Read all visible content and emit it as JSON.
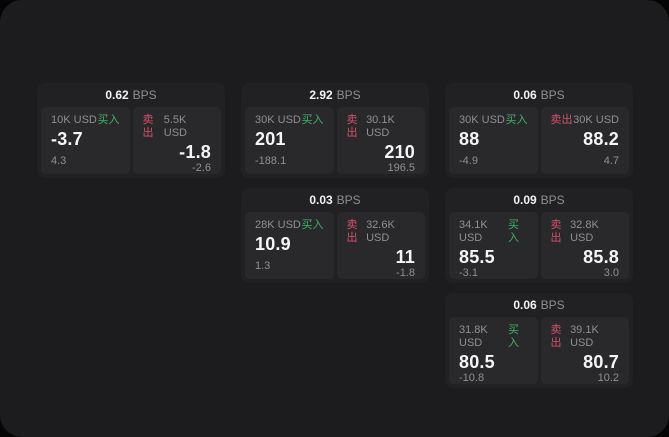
{
  "theme": {
    "page_bg": "#050505",
    "panel_bg": "#1c1c1e",
    "card_bg": "#212123",
    "subcard_bg": "#29292b",
    "text_primary": "#f5f5f6",
    "text_secondary": "#8f8f94",
    "buy_color": "#43b168",
    "sell_color": "#d4516b"
  },
  "labels": {
    "bps_unit": "BPS",
    "buy": "买入",
    "sell": "卖出"
  },
  "cards": [
    {
      "row": 1,
      "col": 1,
      "bps": "0.62",
      "buy": {
        "amount": "10K USD",
        "value": "-3.7",
        "delta": "4.3"
      },
      "sell": {
        "amount": "5.5K USD",
        "value": "-1.8",
        "delta": "-2.6"
      }
    },
    {
      "row": 1,
      "col": 2,
      "bps": "2.92",
      "buy": {
        "amount": "30K USD",
        "value": "201",
        "delta": "-188.1"
      },
      "sell": {
        "amount": "30.1K USD",
        "value": "210",
        "delta": "196.5"
      }
    },
    {
      "row": 1,
      "col": 3,
      "bps": "0.06",
      "buy": {
        "amount": "30K USD",
        "value": "88",
        "delta": "-4.9"
      },
      "sell": {
        "amount": "30K USD",
        "value": "88.2",
        "delta": "4.7"
      }
    },
    {
      "row": 2,
      "col": 2,
      "bps": "0.03",
      "buy": {
        "amount": "28K USD",
        "value": "10.9",
        "delta": "1.3"
      },
      "sell": {
        "amount": "32.6K USD",
        "value": "11",
        "delta": "-1.8"
      }
    },
    {
      "row": 2,
      "col": 3,
      "bps": "0.09",
      "buy": {
        "amount": "34.1K USD",
        "value": "85.5",
        "delta": "-3.1"
      },
      "sell": {
        "amount": "32.8K USD",
        "value": "85.8",
        "delta": "3.0"
      }
    },
    {
      "row": 3,
      "col": 3,
      "bps": "0.06",
      "buy": {
        "amount": "31.8K USD",
        "value": "80.5",
        "delta": "-10.8"
      },
      "sell": {
        "amount": "39.1K USD",
        "value": "80.7",
        "delta": "10.2"
      }
    }
  ]
}
